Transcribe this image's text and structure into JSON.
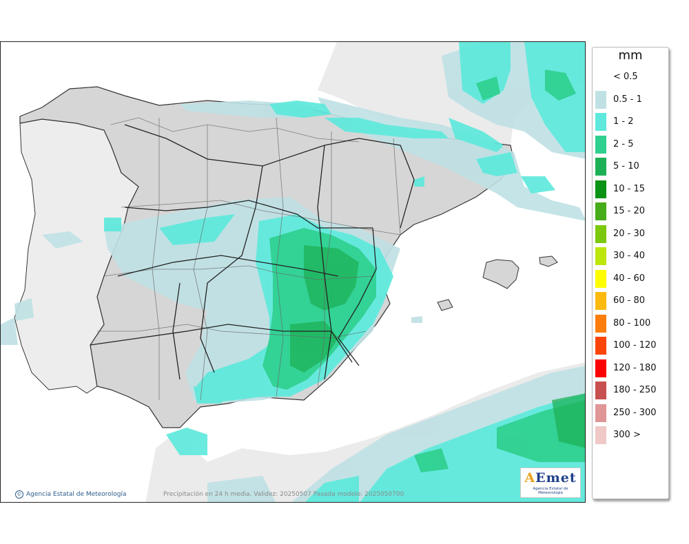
{
  "legend": {
    "title": "mm",
    "items": [
      {
        "label": "< 0.5",
        "color": "#ffffff"
      },
      {
        "label": "0.5 - 1",
        "color": "#bfe1e4"
      },
      {
        "label": "1 - 2",
        "color": "#5ee9dc"
      },
      {
        "label": "2 - 5",
        "color": "#2fcf8e"
      },
      {
        "label": "5 - 10",
        "color": "#1db157"
      },
      {
        "label": "10 - 15",
        "color": "#0a9314"
      },
      {
        "label": "15 - 20",
        "color": "#46ac19"
      },
      {
        "label": "20 - 30",
        "color": "#7cc80c"
      },
      {
        "label": "30 - 40",
        "color": "#bde60d"
      },
      {
        "label": "40 - 60",
        "color": "#fefe00"
      },
      {
        "label": "60 - 80",
        "color": "#fcba10"
      },
      {
        "label": "80 - 100",
        "color": "#fc7d0a"
      },
      {
        "label": "100 - 120",
        "color": "#fc4508"
      },
      {
        "label": "120 - 180",
        "color": "#fa0303"
      },
      {
        "label": "180 - 250",
        "color": "#c85050"
      },
      {
        "label": "250 - 300",
        "color": "#e09696"
      },
      {
        "label": "300 >",
        "color": "#f0c8c8"
      }
    ]
  },
  "footer": {
    "credit": "Agencia Estatal de Meteorología",
    "caption": "Precipitación en 24 h media. Validez: 20250507 Pasada modelo: 2025050700"
  },
  "logo": {
    "word": "AEmet",
    "subtitle": "Agencia Estatal de Meteorología"
  }
}
